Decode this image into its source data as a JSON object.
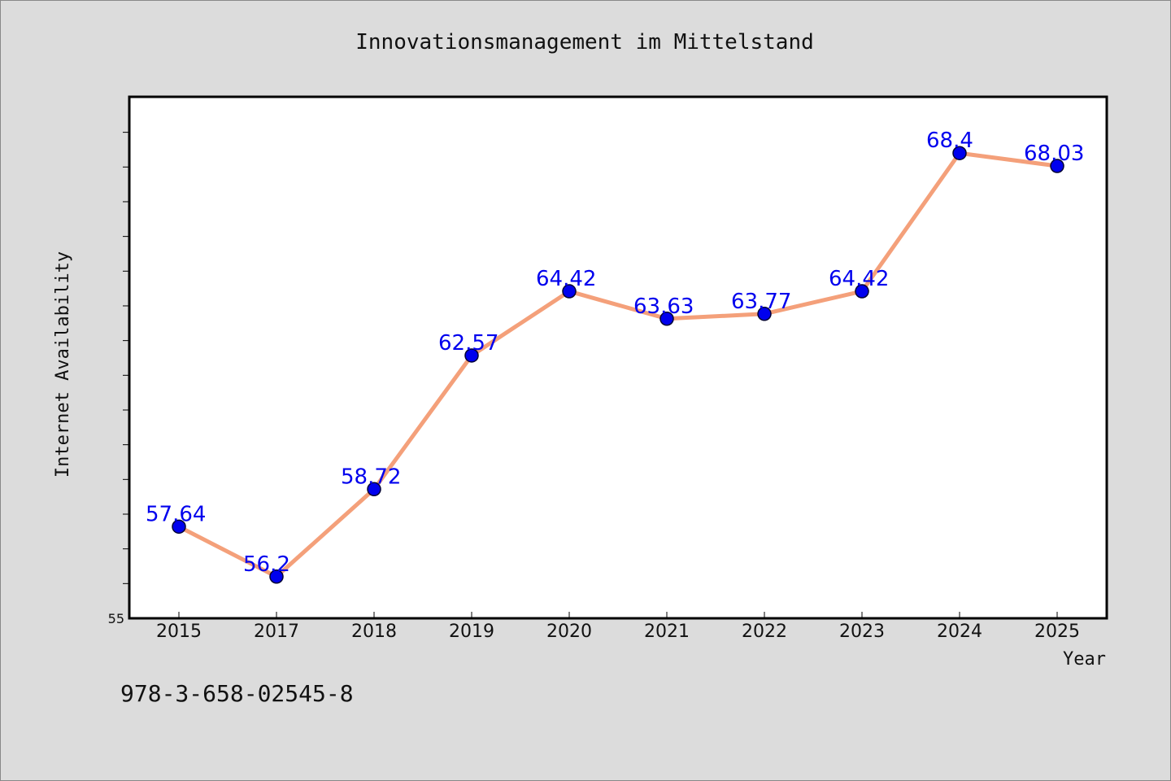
{
  "chart_data": {
    "type": "line",
    "title": "Innovationsmanagement im Mittelstand",
    "xlabel": "Year",
    "ylabel": "Internet Availability",
    "categories": [
      "2015",
      "2017",
      "2018",
      "2019",
      "2020",
      "2021",
      "2022",
      "2023",
      "2024",
      "2025"
    ],
    "series": [
      {
        "values": [
          57.64,
          56.2,
          58.72,
          62.57,
          64.42,
          63.63,
          63.77,
          64.42,
          68.4,
          68.03
        ],
        "data_labels": [
          "57.64",
          "56.2",
          "58.72",
          "62.57",
          "64.42",
          "63.63",
          "63.77",
          "64.42",
          "68.4",
          "68.03"
        ]
      }
    ],
    "ylim": [
      55,
      70
    ],
    "ytick_labels_shown": [
      "55"
    ],
    "grid": false,
    "legend": "none",
    "colors": {
      "line": "#f4a07a",
      "marker": "#0000ee",
      "marker_edge": "#000033",
      "data_label": "#0000ee",
      "plot_background": "#ffffff",
      "figure_background": "#dcdcdc"
    }
  },
  "footer": {
    "isbn": "978-3-658-02545-8"
  }
}
